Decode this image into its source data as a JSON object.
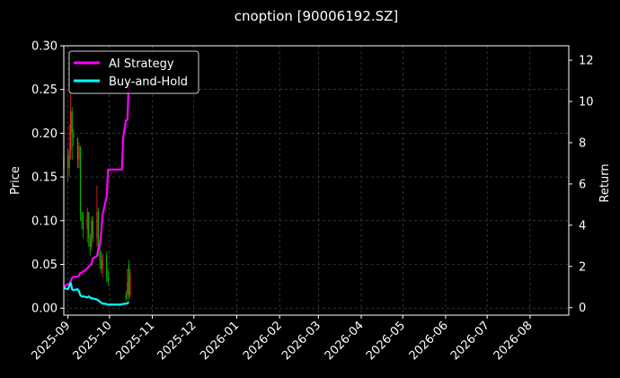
{
  "chart_data": {
    "type": "line",
    "title": "cnoption [90006192.SZ]",
    "left_axis": {
      "label": "Price",
      "ylim": [
        -0.008,
        0.3
      ],
      "ticks": [
        0.0,
        0.05,
        0.1,
        0.15,
        0.2,
        0.25,
        0.3
      ],
      "tick_labels": [
        "0.00",
        "0.05",
        "0.10",
        "0.15",
        "0.20",
        "0.25",
        "0.30"
      ]
    },
    "right_axis": {
      "label": "Return",
      "ylim": [
        -0.36,
        12.7
      ],
      "ticks": [
        0,
        2,
        4,
        6,
        8,
        10,
        12
      ],
      "tick_labels": [
        "0",
        "2",
        "4",
        "6",
        "8",
        "10",
        "12"
      ]
    },
    "x_axis": {
      "xlim": [
        "2025-08-29",
        "2026-08-29"
      ],
      "ticks": [
        "2025-09-01",
        "2025-10-01",
        "2025-11-01",
        "2025-12-01",
        "2026-01-01",
        "2026-02-01",
        "2026-03-01",
        "2026-04-01",
        "2026-05-01",
        "2026-06-01",
        "2026-07-01",
        "2026-08-01"
      ],
      "tick_labels": [
        "2025-09",
        "2025-10",
        "2025-11",
        "2025-12",
        "2026-01",
        "2026-02",
        "2026-03",
        "2026-04",
        "2026-05",
        "2026-06",
        "2026-07",
        "2026-08"
      ]
    },
    "grid": true,
    "legend_position": "top-left",
    "series": [
      {
        "name": "AI Strategy",
        "axis": "right",
        "color": "#ff00ff",
        "points": [
          [
            "2025-08-29",
            1.0
          ],
          [
            "2025-09-01",
            1.15
          ],
          [
            "2025-09-02",
            1.1
          ],
          [
            "2025-09-03",
            1.3
          ],
          [
            "2025-09-04",
            1.45
          ],
          [
            "2025-09-05",
            1.5
          ],
          [
            "2025-09-08",
            1.5
          ],
          [
            "2025-09-09",
            1.55
          ],
          [
            "2025-09-10",
            1.7
          ],
          [
            "2025-09-11",
            1.7
          ],
          [
            "2025-09-12",
            1.75
          ],
          [
            "2025-09-15",
            1.9
          ],
          [
            "2025-09-16",
            2.0
          ],
          [
            "2025-09-17",
            2.05
          ],
          [
            "2025-09-18",
            2.1
          ],
          [
            "2025-09-19",
            2.4
          ],
          [
            "2025-09-22",
            2.5
          ],
          [
            "2025-09-23",
            2.9
          ],
          [
            "2025-09-24",
            3.0
          ],
          [
            "2025-09-25",
            3.6
          ],
          [
            "2025-09-26",
            4.5
          ],
          [
            "2025-09-29",
            5.4
          ],
          [
            "2025-09-30",
            6.7
          ],
          [
            "2025-10-01",
            6.7
          ],
          [
            "2025-10-09",
            6.7
          ],
          [
            "2025-10-10",
            6.7
          ],
          [
            "2025-10-11",
            8.3
          ],
          [
            "2025-10-13",
            9.1
          ],
          [
            "2025-10-14",
            9.1
          ],
          [
            "2025-10-15",
            11.0
          ]
        ]
      },
      {
        "name": "Buy-and-Hold",
        "axis": "right",
        "color": "#00ffff",
        "points": [
          [
            "2025-08-29",
            0.95
          ],
          [
            "2025-09-01",
            0.9
          ],
          [
            "2025-09-02",
            1.05
          ],
          [
            "2025-09-03",
            1.2
          ],
          [
            "2025-09-04",
            0.9
          ],
          [
            "2025-09-05",
            0.85
          ],
          [
            "2025-09-08",
            0.9
          ],
          [
            "2025-09-09",
            0.8
          ],
          [
            "2025-09-10",
            0.6
          ],
          [
            "2025-09-11",
            0.55
          ],
          [
            "2025-09-12",
            0.55
          ],
          [
            "2025-09-15",
            0.5
          ],
          [
            "2025-09-16",
            0.55
          ],
          [
            "2025-09-17",
            0.5
          ],
          [
            "2025-09-18",
            0.45
          ],
          [
            "2025-09-19",
            0.45
          ],
          [
            "2025-09-22",
            0.4
          ],
          [
            "2025-09-23",
            0.35
          ],
          [
            "2025-09-24",
            0.3
          ],
          [
            "2025-09-25",
            0.25
          ],
          [
            "2025-09-26",
            0.2
          ],
          [
            "2025-09-29",
            0.18
          ],
          [
            "2025-09-30",
            0.15
          ],
          [
            "2025-10-09",
            0.15
          ],
          [
            "2025-10-10",
            0.17
          ],
          [
            "2025-10-13",
            0.2
          ],
          [
            "2025-10-14",
            0.22
          ],
          [
            "2025-10-15",
            0.28
          ]
        ]
      }
    ],
    "candles": [
      {
        "date": "2025-08-29",
        "open": 0.16,
        "close": 0.175,
        "high": 0.18,
        "low": 0.15
      },
      {
        "date": "2025-09-01",
        "open": 0.175,
        "close": 0.16,
        "high": 0.182,
        "low": 0.145
      },
      {
        "date": "2025-09-02",
        "open": 0.16,
        "close": 0.18,
        "high": 0.21,
        "low": 0.15
      },
      {
        "date": "2025-09-03",
        "open": 0.18,
        "close": 0.225,
        "high": 0.245,
        "low": 0.17
      },
      {
        "date": "2025-09-04",
        "open": 0.225,
        "close": 0.2,
        "high": 0.23,
        "low": 0.17
      },
      {
        "date": "2025-09-05",
        "open": 0.2,
        "close": 0.195,
        "high": 0.205,
        "low": 0.185
      },
      {
        "date": "2025-09-08",
        "open": 0.195,
        "close": 0.17,
        "high": 0.195,
        "low": 0.16
      },
      {
        "date": "2025-09-09",
        "open": 0.17,
        "close": 0.185,
        "high": 0.19,
        "low": 0.16
      },
      {
        "date": "2025-09-10",
        "open": 0.185,
        "close": 0.11,
        "high": 0.185,
        "low": 0.1
      },
      {
        "date": "2025-09-11",
        "open": 0.11,
        "close": 0.1,
        "high": 0.11,
        "low": 0.09
      },
      {
        "date": "2025-09-12",
        "open": 0.1,
        "close": 0.09,
        "high": 0.11,
        "low": 0.08
      },
      {
        "date": "2025-09-15",
        "open": 0.09,
        "close": 0.11,
        "high": 0.115,
        "low": 0.075
      },
      {
        "date": "2025-09-16",
        "open": 0.11,
        "close": 0.08,
        "high": 0.11,
        "low": 0.07
      },
      {
        "date": "2025-09-17",
        "open": 0.08,
        "close": 0.07,
        "high": 0.085,
        "low": 0.06
      },
      {
        "date": "2025-09-18",
        "open": 0.07,
        "close": 0.1,
        "high": 0.105,
        "low": 0.065
      },
      {
        "date": "2025-09-19",
        "open": 0.1,
        "close": 0.08,
        "high": 0.105,
        "low": 0.075
      },
      {
        "date": "2025-09-22",
        "open": 0.08,
        "close": 0.11,
        "high": 0.14,
        "low": 0.07
      },
      {
        "date": "2025-09-23",
        "open": 0.11,
        "close": 0.07,
        "high": 0.115,
        "low": 0.06
      },
      {
        "date": "2025-09-24",
        "open": 0.07,
        "close": 0.055,
        "high": 0.075,
        "low": 0.045
      },
      {
        "date": "2025-09-25",
        "open": 0.055,
        "close": 0.045,
        "high": 0.065,
        "low": 0.04
      },
      {
        "date": "2025-09-26",
        "open": 0.045,
        "close": 0.06,
        "high": 0.062,
        "low": 0.035
      },
      {
        "date": "2025-09-29",
        "open": 0.06,
        "close": 0.035,
        "high": 0.065,
        "low": 0.03
      },
      {
        "date": "2025-09-30",
        "open": 0.035,
        "close": 0.03,
        "high": 0.045,
        "low": 0.025
      },
      {
        "date": "2025-10-13",
        "open": 0.015,
        "close": 0.012,
        "high": 0.02,
        "low": 0.008
      },
      {
        "date": "2025-10-14",
        "open": 0.015,
        "close": 0.03,
        "high": 0.045,
        "low": 0.01
      },
      {
        "date": "2025-10-15",
        "open": 0.05,
        "close": 0.015,
        "high": 0.055,
        "low": 0.01
      },
      {
        "date": "2025-10-16",
        "open": 0.015,
        "close": 0.04,
        "high": 0.045,
        "low": 0.012
      }
    ],
    "candle_colors": {
      "up": "#ff2a2a",
      "down": "#00bb00"
    },
    "grid_color": "#555555"
  }
}
